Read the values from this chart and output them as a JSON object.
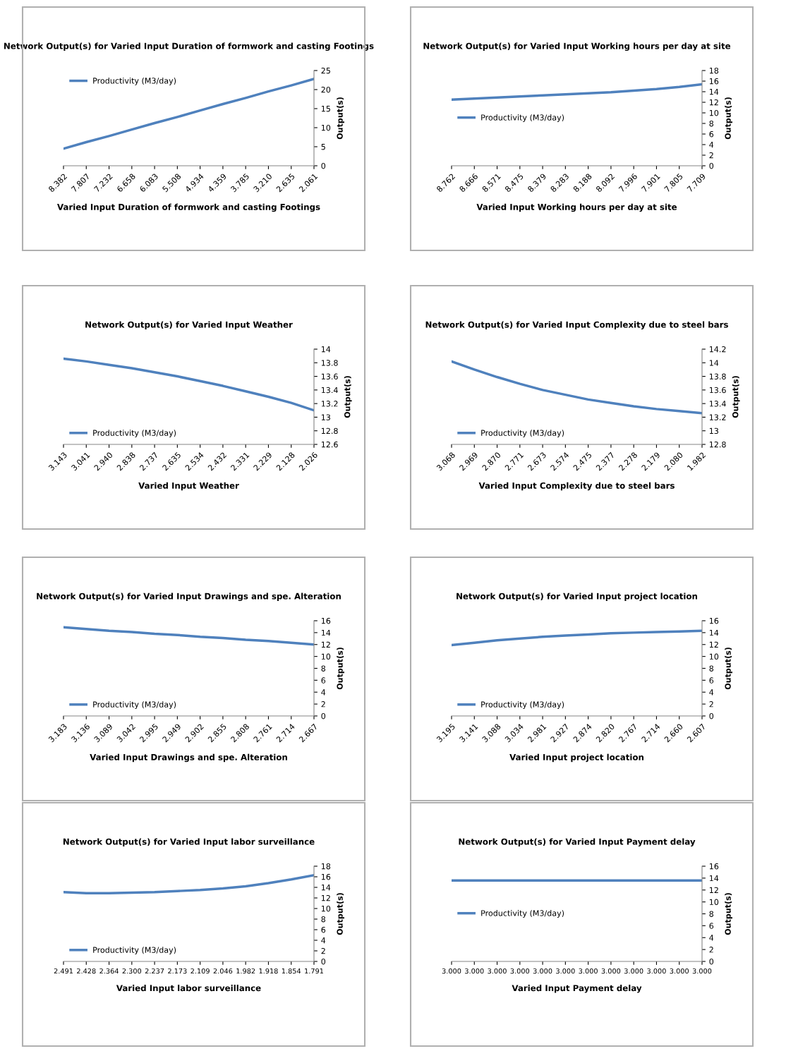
{
  "chart_data": [
    {
      "type": "line",
      "title": "Network Output(s) for Varied Input Duration of formwork and casting Footings",
      "xlabel": "Varied Input Duration of formwork and casting Footings",
      "ylabel": "Output(s)",
      "categories": [
        "8.382",
        "7.807",
        "7.232",
        "6.658",
        "6.083",
        "5.508",
        "4.934",
        "4.359",
        "3.785",
        "3.210",
        "2.635",
        "2.061"
      ],
      "series": [
        {
          "name": "Productivity (M3/day)",
          "color": "#4f81bd",
          "values": [
            4.5,
            6.2,
            7.8,
            9.5,
            11.2,
            12.8,
            14.5,
            16.2,
            17.8,
            19.5,
            21.1,
            22.8
          ]
        }
      ],
      "ylim": [
        0,
        25
      ],
      "yticks": [
        0,
        5,
        10,
        15,
        20,
        25
      ],
      "legend": "top left",
      "grid": false
    },
    {
      "type": "line",
      "title": "Network Output(s) for Varied Input Working hours per day at site",
      "xlabel": "Varied Input Working hours per day at site",
      "ylabel": "Output(s)",
      "categories": [
        "8.762",
        "8.666",
        "8.571",
        "8.475",
        "8.379",
        "8.283",
        "8.188",
        "8.092",
        "7.996",
        "7.901",
        "7.805",
        "7.709"
      ],
      "series": [
        {
          "name": "Productivity (M3/day)",
          "color": "#4f81bd",
          "values": [
            12.5,
            12.7,
            12.9,
            13.1,
            13.3,
            13.5,
            13.7,
            13.9,
            14.2,
            14.5,
            14.9,
            15.4
          ]
        }
      ],
      "ylim": [
        0,
        18
      ],
      "yticks": [
        0,
        2,
        4,
        6,
        8,
        10,
        12,
        14,
        16,
        18
      ],
      "legend": "center left",
      "grid": false
    },
    {
      "type": "line",
      "title": "Network Output(s) for Varied Input Weather",
      "xlabel": "Varied Input Weather",
      "ylabel": "Output(s)",
      "categories": [
        "3.143",
        "3.041",
        "2.940",
        "2.838",
        "2.737",
        "2.635",
        "2.534",
        "2.432",
        "2.331",
        "2.229",
        "2.128",
        "2.026"
      ],
      "series": [
        {
          "name": "Productivity (M3/day)",
          "color": "#4f81bd",
          "values": [
            13.86,
            13.82,
            13.77,
            13.72,
            13.66,
            13.6,
            13.53,
            13.46,
            13.38,
            13.3,
            13.21,
            13.1
          ]
        }
      ],
      "ylim": [
        12.6,
        14
      ],
      "yticks": [
        12.6,
        12.8,
        13,
        13.2,
        13.4,
        13.6,
        13.8,
        14
      ],
      "legend": "lower left",
      "grid": false
    },
    {
      "type": "line",
      "title": "Network Output(s) for Varied Input Complexity due to steel bars",
      "xlabel": "Varied Input Complexity due to steel bars",
      "ylabel": "Output(s)",
      "categories": [
        "3.068",
        "2.969",
        "2.870",
        "2.771",
        "2.673",
        "2.574",
        "2.475",
        "2.377",
        "2.278",
        "2.179",
        "2.080",
        "1.982"
      ],
      "series": [
        {
          "name": "Productivity (M3/day)",
          "color": "#4f81bd",
          "values": [
            14.02,
            13.9,
            13.79,
            13.69,
            13.6,
            13.53,
            13.46,
            13.41,
            13.36,
            13.32,
            13.29,
            13.26
          ]
        }
      ],
      "ylim": [
        12.8,
        14.2
      ],
      "yticks": [
        12.8,
        13,
        13.2,
        13.4,
        13.6,
        13.8,
        14,
        14.2
      ],
      "legend": "lower left",
      "grid": false
    },
    {
      "type": "line",
      "title": "Network Output(s) for Varied Input Drawings and spe. Alteration",
      "xlabel": "Varied Input Drawings and spe. Alteration",
      "ylabel": "Output(s)",
      "categories": [
        "3.183",
        "3.136",
        "3.089",
        "3.042",
        "2.995",
        "2.949",
        "2.902",
        "2.855",
        "2.808",
        "2.761",
        "2.714",
        "2.667"
      ],
      "series": [
        {
          "name": "Productivity (M3/day)",
          "color": "#4f81bd",
          "values": [
            14.9,
            14.6,
            14.3,
            14.1,
            13.8,
            13.6,
            13.3,
            13.1,
            12.8,
            12.6,
            12.3,
            12.0
          ]
        }
      ],
      "ylim": [
        0,
        16
      ],
      "yticks": [
        0,
        2,
        4,
        6,
        8,
        10,
        12,
        14,
        16
      ],
      "legend": "lower left",
      "grid": false
    },
    {
      "type": "line",
      "title": "Network Output(s) for Varied Input project location",
      "xlabel": "Varied Input project location",
      "ylabel": "Output(s)",
      "categories": [
        "3.195",
        "3.141",
        "3.088",
        "3.034",
        "2.981",
        "2.927",
        "2.874",
        "2.820",
        "2.767",
        "2.714",
        "2.660",
        "2.607"
      ],
      "series": [
        {
          "name": "Productivity (M3/day)",
          "color": "#4f81bd",
          "values": [
            11.9,
            12.3,
            12.7,
            13.0,
            13.3,
            13.5,
            13.7,
            13.9,
            14.0,
            14.1,
            14.2,
            14.3
          ]
        }
      ],
      "ylim": [
        0,
        16
      ],
      "yticks": [
        0,
        2,
        4,
        6,
        8,
        10,
        12,
        14,
        16
      ],
      "legend": "lower left",
      "grid": false
    },
    {
      "type": "line",
      "title": "Network Output(s) for Varied Input labor surveillance",
      "xlabel": "Varied Input labor surveillance",
      "ylabel": "Output(s)",
      "categories": [
        "2.491",
        "2.428",
        "2.364",
        "2.300",
        "2.237",
        "2.173",
        "2.109",
        "2.046",
        "1.982",
        "1.918",
        "1.854",
        "1.791"
      ],
      "series": [
        {
          "name": "Productivity (M3/day)",
          "color": "#4f81bd",
          "values": [
            13.1,
            12.9,
            12.9,
            13.0,
            13.1,
            13.3,
            13.5,
            13.8,
            14.2,
            14.8,
            15.5,
            16.3
          ]
        }
      ],
      "ylim": [
        0,
        18
      ],
      "yticks": [
        0,
        2,
        4,
        6,
        8,
        10,
        12,
        14,
        16,
        18
      ],
      "legend": "lower left",
      "grid": false
    },
    {
      "type": "line",
      "title": "Network Output(s) for Varied Input Payment delay",
      "xlabel": "Varied Input Payment delay",
      "ylabel": "Output(s)",
      "categories": [
        "3.000",
        "3.000",
        "3.000",
        "3.000",
        "3.000",
        "3.000",
        "3.000",
        "3.000",
        "3.000",
        "3.000",
        "3.000",
        "3.000"
      ],
      "series": [
        {
          "name": "Productivity (M3/day)",
          "color": "#4f81bd",
          "values": [
            13.6,
            13.6,
            13.6,
            13.6,
            13.6,
            13.6,
            13.6,
            13.6,
            13.6,
            13.6,
            13.6,
            13.6
          ]
        }
      ],
      "ylim": [
        0,
        16
      ],
      "yticks": [
        0,
        2,
        4,
        6,
        8,
        10,
        12,
        14,
        16
      ],
      "legend": "center left",
      "grid": false
    }
  ]
}
